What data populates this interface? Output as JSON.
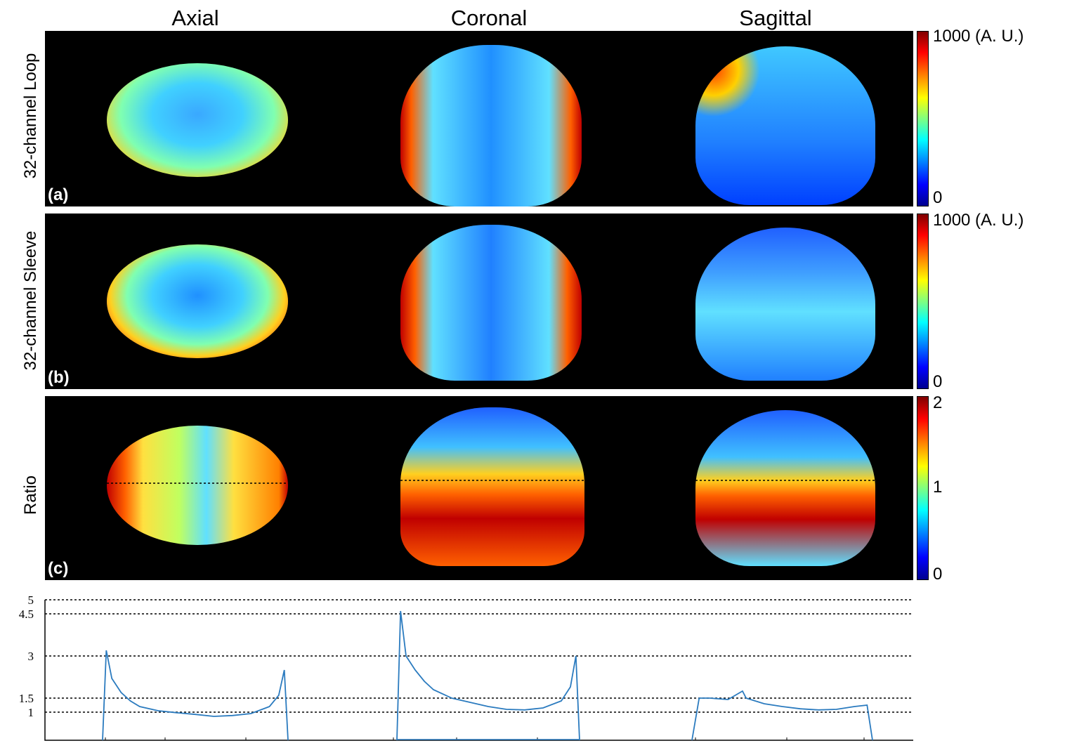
{
  "columns": [
    "Axial",
    "Coronal",
    "Sagittal"
  ],
  "rows": [
    {
      "label": "32-channel Loop",
      "letter": "(a)",
      "cbar_max": "1000 (A. U.)",
      "cbar_min": "0"
    },
    {
      "label": "32-channel Sleeve",
      "letter": "(b)",
      "cbar_max": "1000 (A. U.)",
      "cbar_min": "0"
    },
    {
      "label": "Ratio",
      "letter": "(c)",
      "cbar_max": "2",
      "cbar_mid": "1",
      "cbar_min": "0"
    }
  ],
  "chart_data": {
    "type": "line",
    "title": "",
    "xlabel": "",
    "ylabel": "",
    "ylim": [
      0,
      5
    ],
    "yticks": [
      "1",
      "1.5",
      "3",
      "4.5",
      "5"
    ],
    "reference_lines": [
      1,
      1.5,
      3,
      4.5,
      5
    ],
    "series": [
      {
        "segment": "Axial",
        "x": [
          0,
          0.02,
          0.05,
          0.1,
          0.15,
          0.2,
          0.3,
          0.4,
          0.5,
          0.6,
          0.7,
          0.8,
          0.9,
          0.95,
          0.98,
          1.0
        ],
        "y": [
          0,
          3.2,
          2.2,
          1.7,
          1.4,
          1.2,
          1.05,
          0.98,
          0.92,
          0.85,
          0.88,
          0.95,
          1.2,
          1.6,
          2.5,
          0
        ]
      },
      {
        "segment": "Coronal",
        "x": [
          0,
          0.02,
          0.05,
          0.1,
          0.15,
          0.2,
          0.3,
          0.4,
          0.5,
          0.6,
          0.7,
          0.8,
          0.9,
          0.95,
          0.98,
          1.0
        ],
        "y": [
          0,
          4.6,
          3.0,
          2.5,
          2.1,
          1.8,
          1.5,
          1.35,
          1.2,
          1.1,
          1.08,
          1.15,
          1.4,
          1.9,
          3.0,
          0
        ]
      },
      {
        "segment": "Sagittal",
        "x": [
          0,
          0.04,
          0.1,
          0.2,
          0.28,
          0.3,
          0.4,
          0.5,
          0.6,
          0.7,
          0.8,
          0.9,
          0.97,
          1.0
        ],
        "y": [
          0,
          1.5,
          1.5,
          1.45,
          1.75,
          1.5,
          1.3,
          1.2,
          1.12,
          1.08,
          1.1,
          1.2,
          1.25,
          0
        ]
      }
    ]
  }
}
